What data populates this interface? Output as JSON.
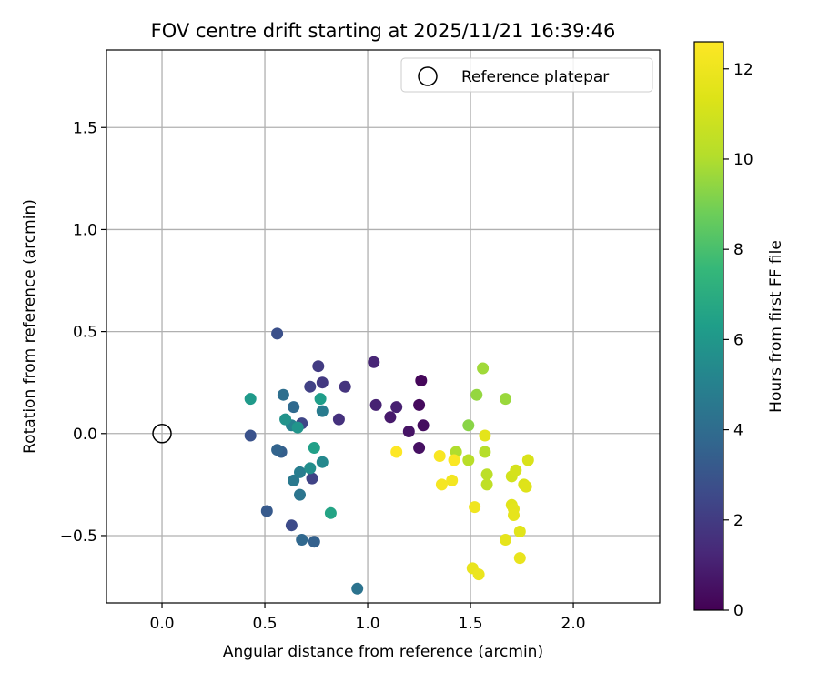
{
  "chart_data": {
    "type": "scatter",
    "title": "FOV centre drift starting at 2025/11/21 16:39:46",
    "xlabel": "Angular distance from reference (arcmin)",
    "ylabel": "Rotation from reference (arcmin)",
    "xlim": [
      -0.27,
      2.42
    ],
    "ylim": [
      -0.83,
      1.88
    ],
    "x_ticks": [
      0.0,
      0.5,
      1.0,
      1.5,
      2.0
    ],
    "x_tick_labels": [
      "0.0",
      "0.5",
      "1.0",
      "1.5",
      "2.0"
    ],
    "y_ticks": [
      -0.5,
      0.0,
      0.5,
      1.0,
      1.5
    ],
    "y_tick_labels": [
      "−0.5",
      "0.0",
      "0.5",
      "1.0",
      "1.5"
    ],
    "grid": true,
    "legend": {
      "position": "top-right",
      "entries": [
        "Reference platepar"
      ]
    },
    "reference_point": {
      "x": 0.0,
      "y": 0.0,
      "label": "Reference platepar"
    },
    "colorbar": {
      "label": "Hours from first FF file",
      "colormap": "viridis",
      "range": [
        0,
        12.6
      ],
      "ticks": [
        0,
        2,
        4,
        6,
        8,
        10,
        12
      ],
      "tick_labels": [
        "0",
        "2",
        "4",
        "6",
        "8",
        "10",
        "12"
      ]
    },
    "points": [
      {
        "x": 1.26,
        "y": 0.26,
        "t": 0.2
      },
      {
        "x": 1.25,
        "y": 0.14,
        "t": 0.3
      },
      {
        "x": 1.27,
        "y": 0.04,
        "t": 0.4
      },
      {
        "x": 1.25,
        "y": -0.07,
        "t": 0.5
      },
      {
        "x": 1.2,
        "y": 0.01,
        "t": 0.6
      },
      {
        "x": 1.11,
        "y": 0.08,
        "t": 0.8
      },
      {
        "x": 1.14,
        "y": 0.13,
        "t": 1.0
      },
      {
        "x": 1.04,
        "y": 0.14,
        "t": 1.1
      },
      {
        "x": 1.03,
        "y": 0.35,
        "t": 1.2
      },
      {
        "x": 0.86,
        "y": 0.07,
        "t": 1.6
      },
      {
        "x": 0.89,
        "y": 0.23,
        "t": 1.7
      },
      {
        "x": 0.78,
        "y": 0.25,
        "t": 1.9
      },
      {
        "x": 0.76,
        "y": 0.33,
        "t": 2.0
      },
      {
        "x": 0.72,
        "y": 0.23,
        "t": 2.2
      },
      {
        "x": 0.68,
        "y": 0.05,
        "t": 2.4
      },
      {
        "x": 0.73,
        "y": -0.22,
        "t": 2.3
      },
      {
        "x": 0.63,
        "y": -0.45,
        "t": 2.6
      },
      {
        "x": 0.56,
        "y": 0.49,
        "t": 2.8
      },
      {
        "x": 0.43,
        "y": -0.01,
        "t": 2.9
      },
      {
        "x": 0.51,
        "y": -0.38,
        "t": 3.2
      },
      {
        "x": 0.58,
        "y": -0.09,
        "t": 3.4
      },
      {
        "x": 0.56,
        "y": -0.08,
        "t": 3.6
      },
      {
        "x": 0.74,
        "y": -0.53,
        "t": 3.5
      },
      {
        "x": 0.68,
        "y": -0.52,
        "t": 3.8
      },
      {
        "x": 0.64,
        "y": 0.13,
        "t": 3.9
      },
      {
        "x": 0.59,
        "y": 0.19,
        "t": 4.1
      },
      {
        "x": 0.95,
        "y": -0.76,
        "t": 4.3
      },
      {
        "x": 0.67,
        "y": -0.3,
        "t": 4.4
      },
      {
        "x": 0.64,
        "y": -0.23,
        "t": 4.6
      },
      {
        "x": 0.67,
        "y": -0.19,
        "t": 4.8
      },
      {
        "x": 0.78,
        "y": 0.11,
        "t": 4.7
      },
      {
        "x": 0.63,
        "y": 0.04,
        "t": 5.0
      },
      {
        "x": 0.78,
        "y": -0.14,
        "t": 5.3
      },
      {
        "x": 0.72,
        "y": -0.17,
        "t": 5.6
      },
      {
        "x": 0.6,
        "y": 0.07,
        "t": 5.8
      },
      {
        "x": 0.66,
        "y": 0.03,
        "t": 5.9
      },
      {
        "x": 0.43,
        "y": 0.17,
        "t": 6.1
      },
      {
        "x": 0.77,
        "y": 0.17,
        "t": 6.3
      },
      {
        "x": 0.74,
        "y": -0.07,
        "t": 6.4
      },
      {
        "x": 0.82,
        "y": -0.39,
        "t": 6.6
      },
      {
        "x": 1.49,
        "y": 0.04,
        "t": 9.3
      },
      {
        "x": 1.53,
        "y": 0.19,
        "t": 9.5
      },
      {
        "x": 1.56,
        "y": 0.32,
        "t": 9.7
      },
      {
        "x": 1.67,
        "y": 0.17,
        "t": 9.6
      },
      {
        "x": 1.43,
        "y": -0.09,
        "t": 10.0
      },
      {
        "x": 1.49,
        "y": -0.13,
        "t": 10.2
      },
      {
        "x": 1.57,
        "y": -0.09,
        "t": 10.1
      },
      {
        "x": 1.58,
        "y": -0.2,
        "t": 10.3
      },
      {
        "x": 1.58,
        "y": -0.25,
        "t": 10.4
      },
      {
        "x": 1.57,
        "y": -0.01,
        "t": 11.6
      },
      {
        "x": 1.7,
        "y": -0.21,
        "t": 11.0
      },
      {
        "x": 1.72,
        "y": -0.18,
        "t": 11.1
      },
      {
        "x": 1.78,
        "y": -0.13,
        "t": 11.2
      },
      {
        "x": 1.76,
        "y": -0.25,
        "t": 11.3
      },
      {
        "x": 1.77,
        "y": -0.26,
        "t": 11.4
      },
      {
        "x": 1.7,
        "y": -0.35,
        "t": 11.5
      },
      {
        "x": 1.71,
        "y": -0.37,
        "t": 11.6
      },
      {
        "x": 1.71,
        "y": -0.4,
        "t": 11.7
      },
      {
        "x": 1.74,
        "y": -0.48,
        "t": 11.5
      },
      {
        "x": 1.67,
        "y": -0.52,
        "t": 11.7
      },
      {
        "x": 1.74,
        "y": -0.61,
        "t": 11.8
      },
      {
        "x": 1.51,
        "y": -0.66,
        "t": 11.8
      },
      {
        "x": 1.54,
        "y": -0.69,
        "t": 11.9
      },
      {
        "x": 1.52,
        "y": -0.36,
        "t": 12.1
      },
      {
        "x": 1.41,
        "y": -0.23,
        "t": 12.2
      },
      {
        "x": 1.36,
        "y": -0.25,
        "t": 12.3
      },
      {
        "x": 1.35,
        "y": -0.11,
        "t": 12.4
      },
      {
        "x": 1.42,
        "y": -0.13,
        "t": 12.5
      },
      {
        "x": 1.14,
        "y": -0.09,
        "t": 12.6
      }
    ]
  }
}
